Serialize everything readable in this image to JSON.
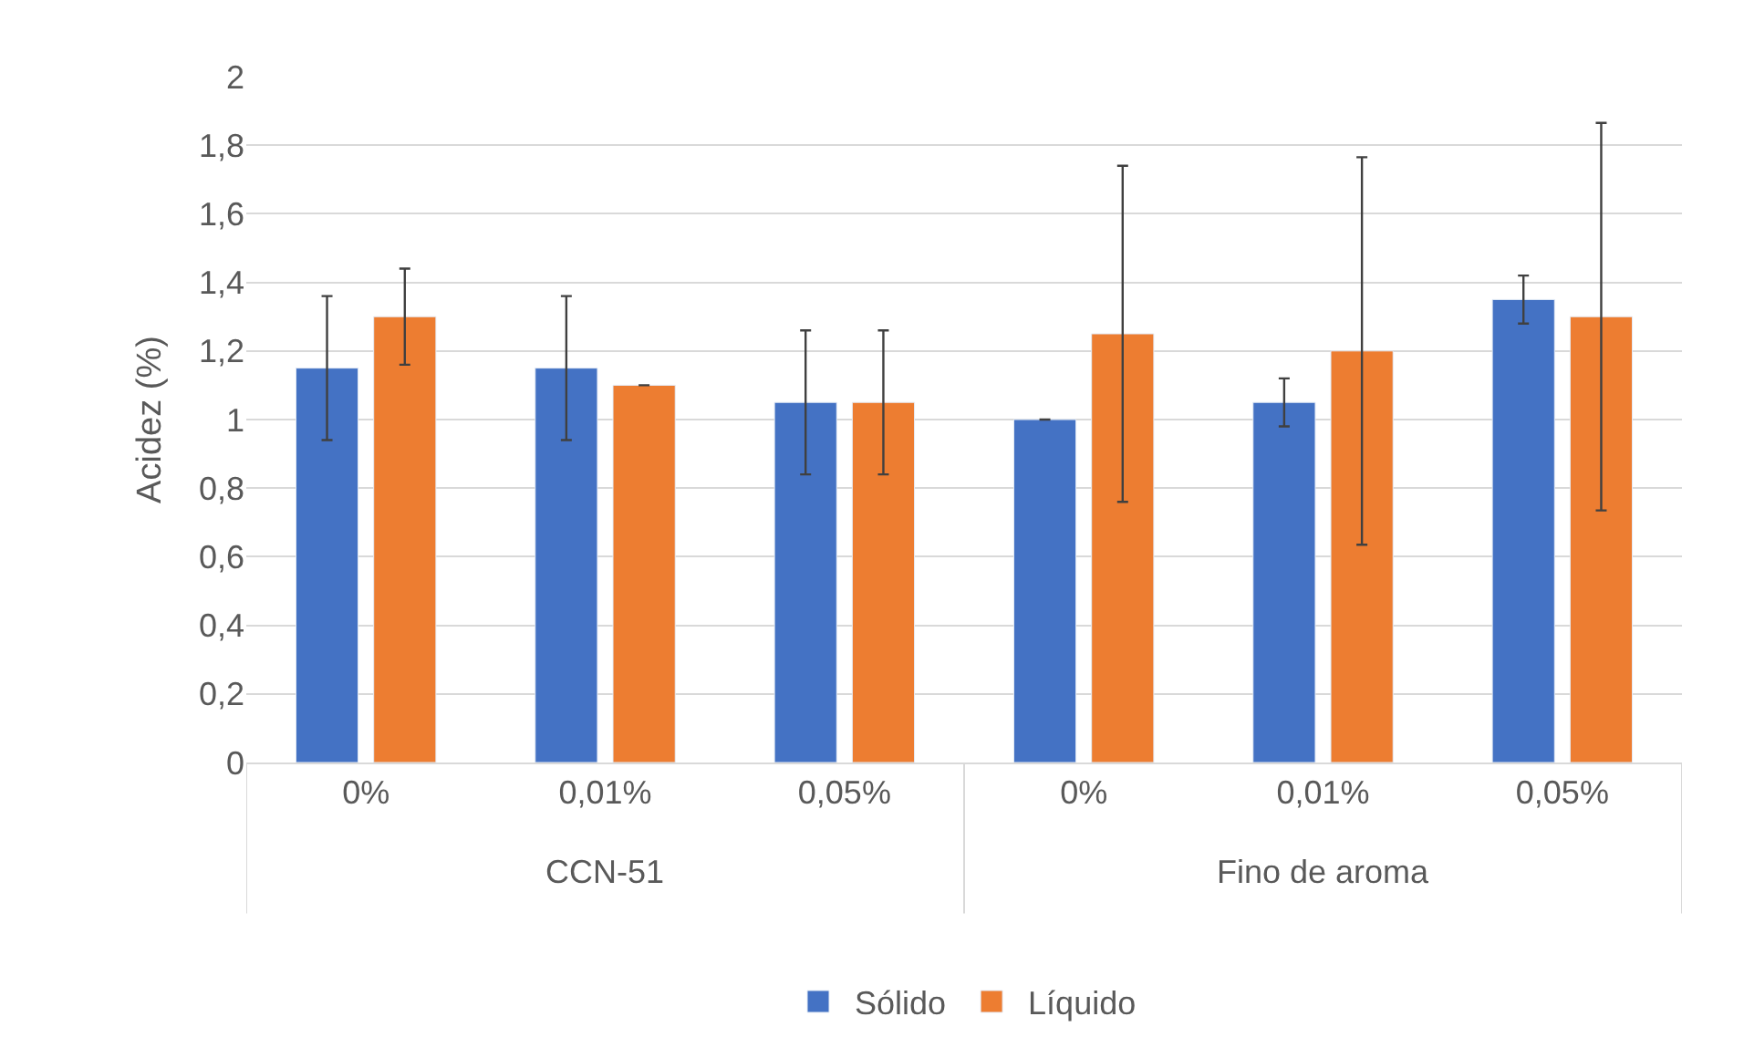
{
  "chart_data": {
    "type": "bar",
    "ylabel": "Acidez (%)",
    "categories": [
      "0%",
      "0,01%",
      "0,05%",
      "0%",
      "0,01%",
      "0,05%"
    ],
    "annotations": [
      "CCN-51",
      "Fino de aroma"
    ],
    "series": [
      {
        "name": "Sólido",
        "color": "#4472c4",
        "values": [
          1.15,
          1.15,
          1.05,
          1.0,
          1.05,
          1.35
        ],
        "errors": [
          0.21,
          0.21,
          0.21,
          0,
          0.07,
          0.07
        ]
      },
      {
        "name": "Líquido",
        "color": "#ed7d31",
        "values": [
          1.3,
          1.1,
          1.05,
          1.25,
          1.2,
          1.3
        ],
        "errors": [
          0.14,
          0,
          0.21,
          0.49,
          0.565,
          0.565
        ]
      }
    ],
    "ylim": [
      0,
      2
    ],
    "yticks": [
      {
        "value": 0,
        "label": "0"
      },
      {
        "value": 0.2,
        "label": "0,2"
      },
      {
        "value": 0.4,
        "label": "0,4"
      },
      {
        "value": 0.6,
        "label": "0,6"
      },
      {
        "value": 0.8,
        "label": "0,8"
      },
      {
        "value": 1,
        "label": "1"
      },
      {
        "value": 1.2,
        "label": "1,2"
      },
      {
        "value": 1.4,
        "label": "1,4"
      },
      {
        "value": 1.6,
        "label": "1,6"
      },
      {
        "value": 1.8,
        "label": "1,8"
      },
      {
        "value": 2,
        "label": "2"
      }
    ],
    "grid": "y",
    "legend": "bottom"
  }
}
